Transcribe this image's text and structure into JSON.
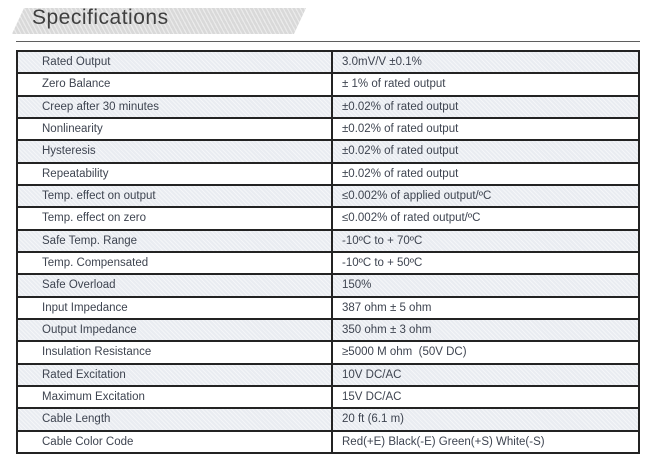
{
  "header": {
    "title": "Specifications"
  },
  "colors": {
    "banner_fill": "#d9d9d9",
    "title_color": "#3f3f3f",
    "table_border": "#232323",
    "row_shaded": "#e9ecf1",
    "row_plain": "#ffffff",
    "text": "#3e4450"
  },
  "table": {
    "rows": [
      {
        "label": "Rated Output",
        "value": "3.0mV/V ±0.1%"
      },
      {
        "label": "Zero Balance",
        "value": "± 1% of rated output"
      },
      {
        "label": "Creep after 30 minutes",
        "value": "±0.02% of rated output"
      },
      {
        "label": "Nonlinearity",
        "value": "±0.02% of rated output"
      },
      {
        "label": "Hysteresis",
        "value": "±0.02% of rated output"
      },
      {
        "label": "Repeatability",
        "value": "±0.02% of rated output"
      },
      {
        "label": "Temp. effect on output",
        "value": "≤0.002% of applied output/ºC"
      },
      {
        "label": "Temp. effect on zero",
        "value": "≤0.002% of rated output/ºC"
      },
      {
        "label": "Safe Temp. Range",
        "value": "-10ºC to + 70ºC"
      },
      {
        "label": "Temp. Compensated",
        "value": "-10ºC to + 50ºC"
      },
      {
        "label": "Safe Overload",
        "value": "150%"
      },
      {
        "label": "Input Impedance",
        "value": "387 ohm ± 5 ohm"
      },
      {
        "label": "Output Impedance",
        "value": "350 ohm ± 3 ohm"
      },
      {
        "label": "Insulation Resistance",
        "value": "≥5000 M ohm  (50V DC)"
      },
      {
        "label": "Rated Excitation",
        "value": "10V DC/AC"
      },
      {
        "label": "Maximum Excitation",
        "value": "15V DC/AC"
      },
      {
        "label": "Cable Length",
        "value": "20 ft (6.1 m)"
      },
      {
        "label": "Cable Color Code",
        "value": "Red(+E) Black(-E) Green(+S) White(-S)"
      }
    ]
  }
}
